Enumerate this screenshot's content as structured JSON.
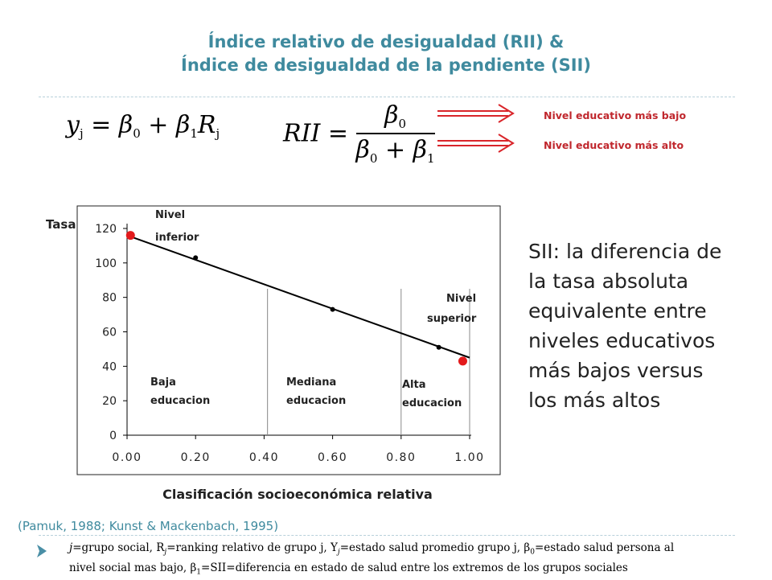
{
  "title": {
    "line1": "Índice relativo de desigualdad (RII) &",
    "line2": "Índice de desigualdad de la pendiente (SII)"
  },
  "formulas": {
    "regression": {
      "lhs": "y",
      "lhs_sub": "j",
      "eq": "=",
      "b0": "β",
      "b0_sub": "0",
      "plus": "+",
      "b1": "β",
      "b1_sub": "1",
      "r": "R",
      "r_sub": "j"
    },
    "rii": {
      "lhs": "RII",
      "eq": "=",
      "num": "β",
      "num_sub": "0",
      "den_a": "β",
      "den_a_sub": "0",
      "den_plus": "+",
      "den_b": "β",
      "den_b_sub": "1"
    }
  },
  "legend": {
    "lowest_label": "Nivel educativo más bajo",
    "highest_label": "Nivel educativo más alto",
    "arrow_color": "#d9252a"
  },
  "chart_data": {
    "type": "scatter",
    "ylabel": "Tasa",
    "xlabel": "Clasificación socioeconómica relativa",
    "xlim": [
      0,
      1
    ],
    "ylim": [
      0,
      120
    ],
    "x_ticks": [
      "0.00",
      "0.20",
      "0.40",
      "0.60",
      "0.80",
      "1.00"
    ],
    "y_ticks": [
      "0",
      "20",
      "40",
      "60",
      "80",
      "100",
      "120"
    ],
    "grid": false,
    "regression_line": {
      "x": [
        0.0,
        1.0
      ],
      "y": [
        116,
        45
      ]
    },
    "group_points": [
      {
        "x": 0.2,
        "y": 103
      },
      {
        "x": 0.6,
        "y": 73
      },
      {
        "x": 0.91,
        "y": 51
      }
    ],
    "extreme_points": [
      {
        "x": 0.01,
        "y": 116,
        "color": "#e31a1c"
      },
      {
        "x": 0.98,
        "y": 43,
        "color": "#e31a1c"
      }
    ],
    "group_boundaries": [
      0.41,
      0.8,
      1.0
    ],
    "annotations": {
      "top_left_line1": "Nivel",
      "top_left_line2": "inferior",
      "top_right_line1": "Nivel",
      "top_right_line2": "superior",
      "group1_line1": "Baja",
      "group1_line2": "educacion",
      "group2_line1": "Mediana",
      "group2_line2": "educacion",
      "group3_line1": "Alta",
      "group3_line2": "educacion"
    }
  },
  "sii_text": {
    "line1": "SII:  la diferencia de",
    "line2": "la tasa absoluta",
    "line3": "equivalente entre",
    "line4": "niveles educativos",
    "line5": "más bajos versus",
    "line6": "los más altos"
  },
  "citation": "(Pamuk, 1988; Kunst & Mackenbach, 1995)",
  "footnote": {
    "p1": "j",
    "p2": "=grupo social, R",
    "p3": "j",
    "p4": "=ranking relativo de grupo j, Y",
    "p5": "j",
    "p6": "=estado salud promedio grupo j, β",
    "p7": "0",
    "p8": "=estado salud persona al",
    "p9": "nivel social mas bajo, β",
    "p10": "1",
    "p11": "=SII=diferencia en estado de salud entre los extremos de los grupos sociales"
  },
  "colors": {
    "title": "#3f8a9e",
    "accent_red": "#e31a1c",
    "bullet": "#4a8fa6"
  }
}
